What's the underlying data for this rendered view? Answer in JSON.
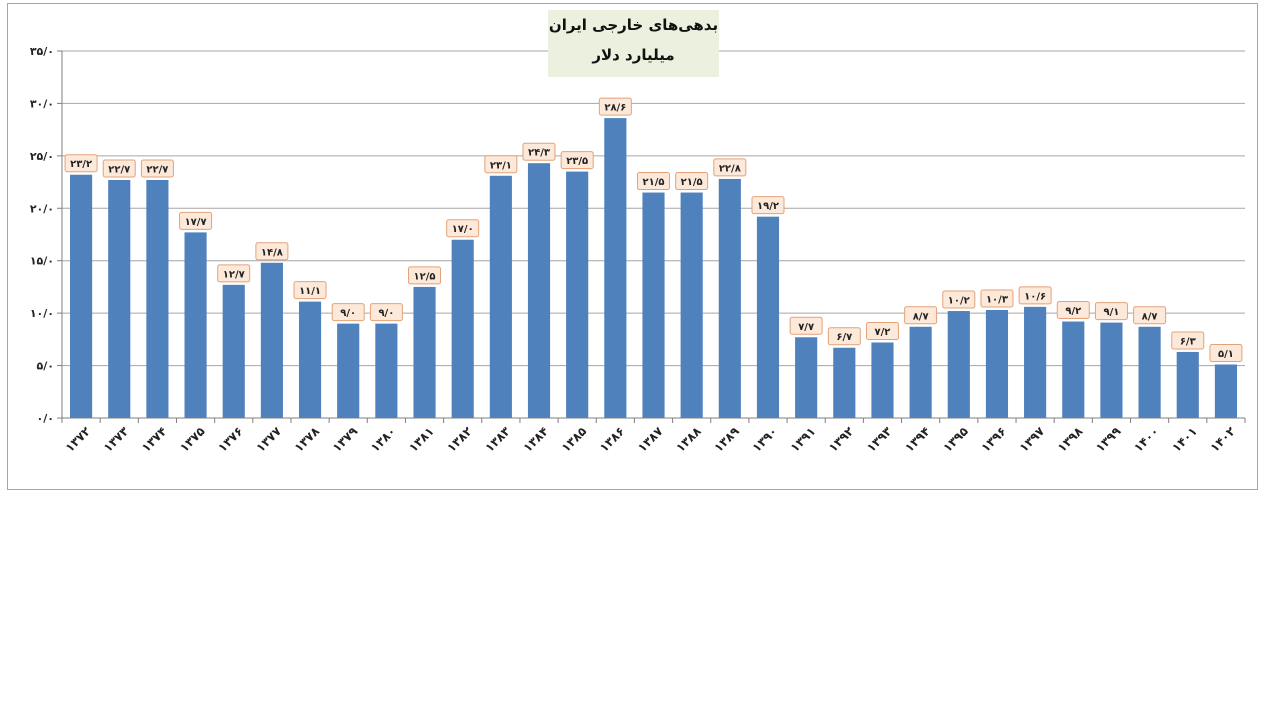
{
  "chart_data": {
    "type": "bar",
    "title": "بدهی‌های خارجی ایران",
    "subtitle": "میلیارد دلار",
    "categories": [
      "۱۳۷۲",
      "۱۳۷۳",
      "۱۳۷۴",
      "۱۳۷۵",
      "۱۳۷۶",
      "۱۳۷۷",
      "۱۳۷۸",
      "۱۳۷۹",
      "۱۳۸۰",
      "۱۳۸۱",
      "۱۳۸۲",
      "۱۳۸۳",
      "۱۳۸۴",
      "۱۳۸۵",
      "۱۳۸۶",
      "۱۳۸۷",
      "۱۳۸۸",
      "۱۳۸۹",
      "۱۳۹۰",
      "۱۳۹۱",
      "۱۳۹۲",
      "۱۳۹۳",
      "۱۳۹۴",
      "۱۳۹۵",
      "۱۳۹۶",
      "۱۳۹۷",
      "۱۳۹۸",
      "۱۳۹۹",
      "۱۴۰۰",
      "۱۴۰۱",
      "۱۴۰۲"
    ],
    "values": [
      23.2,
      22.7,
      22.7,
      17.7,
      12.7,
      14.8,
      11.1,
      9.0,
      9.0,
      12.5,
      17.0,
      23.1,
      24.3,
      23.5,
      28.6,
      21.5,
      21.5,
      22.8,
      19.2,
      7.7,
      6.7,
      7.2,
      8.7,
      10.2,
      10.3,
      10.6,
      9.2,
      9.1,
      8.7,
      6.3,
      5.1
    ],
    "data_labels": [
      "۲۳/۲",
      "۲۲/۷",
      "۲۲/۷",
      "۱۷/۷",
      "۱۲/۷",
      "۱۴/۸",
      "۱۱/۱",
      "۹/۰",
      "۹/۰",
      "۱۲/۵",
      "۱۷/۰",
      "۲۳/۱",
      "۲۴/۳",
      "۲۳/۵",
      "۲۸/۶",
      "۲۱/۵",
      "۲۱/۵",
      "۲۲/۸",
      "۱۹/۲",
      "۷/۷",
      "۶/۷",
      "۷/۲",
      "۸/۷",
      "۱۰/۲",
      "۱۰/۳",
      "۱۰/۶",
      "۹/۲",
      "۹/۱",
      "۸/۷",
      "۶/۳",
      "۵/۱"
    ],
    "ylim": [
      0,
      35
    ],
    "yticks": [
      0,
      5,
      10,
      15,
      20,
      25,
      30,
      35
    ],
    "ytick_labels": [
      "۰/۰",
      "۵/۰",
      "۱۰/۰",
      "۱۵/۰",
      "۲۰/۰",
      "۲۵/۰",
      "۳۰/۰",
      "۳۵/۰"
    ],
    "grid": true,
    "legend": "none",
    "bar_color": "#4f81bd",
    "label_fill": "#fde9d9",
    "label_border": "#e3a27a",
    "grid_color": "#a6a6a6"
  }
}
